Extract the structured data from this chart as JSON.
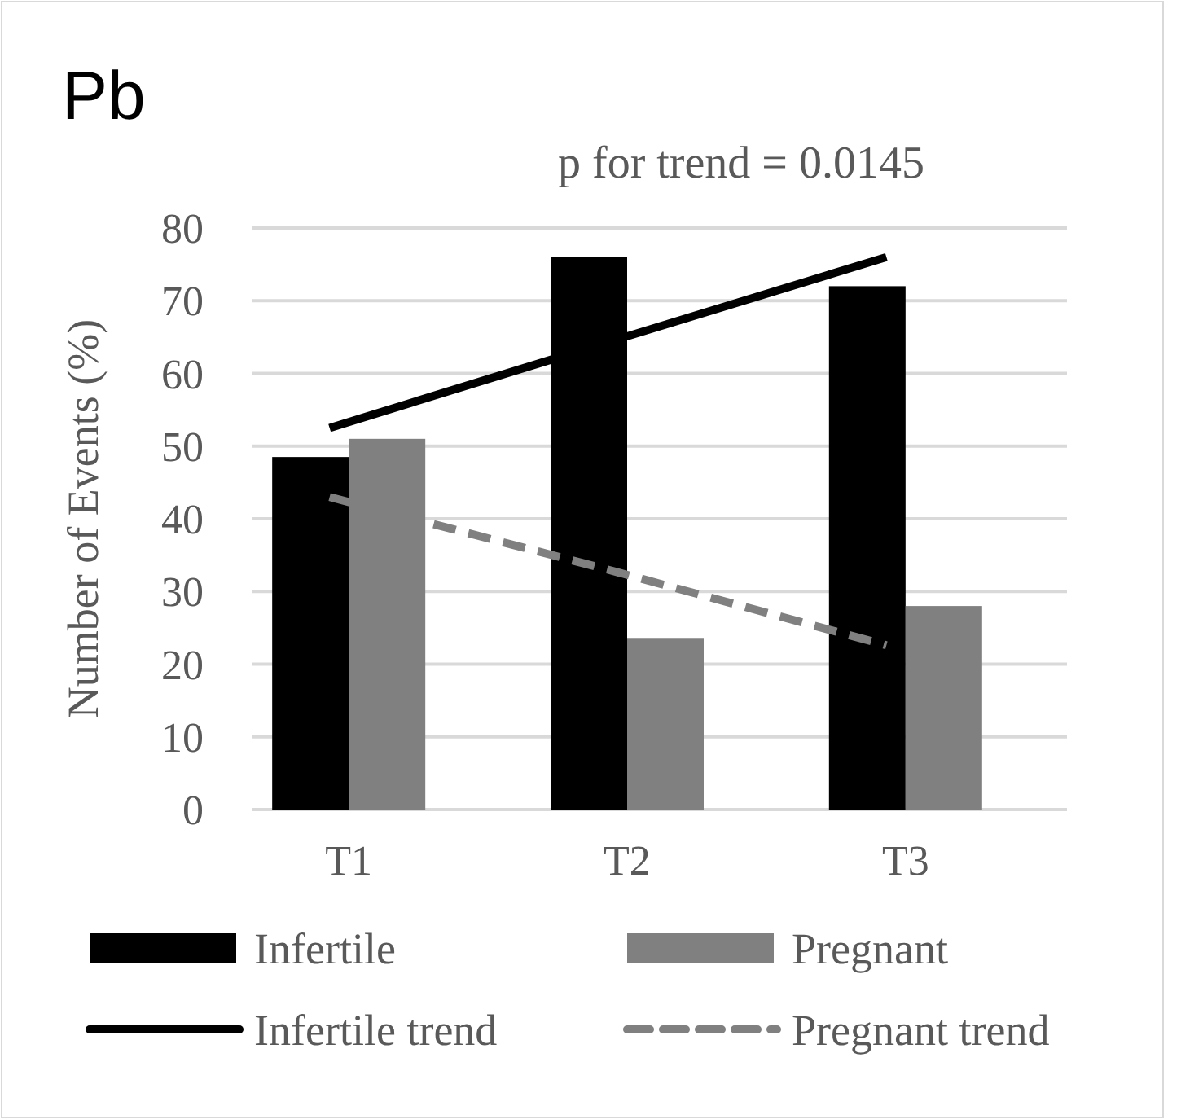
{
  "chart_data": {
    "type": "bar",
    "title": "Pb",
    "annotations": [
      "p for trend = 0.0145"
    ],
    "ylabel": "Number of Events (%)",
    "categories": [
      "T1",
      "T2",
      "T3"
    ],
    "series": [
      {
        "name": "Infertile",
        "color": "#000000",
        "values": [
          48.5,
          76,
          72
        ]
      },
      {
        "name": "Pregnant",
        "color": "#808080",
        "values": [
          51,
          23.5,
          28
        ]
      },
      {
        "name": "Infertile trend",
        "type": "line",
        "color": "#000000",
        "line_style": "solid",
        "values": [
          52.5,
          64.3,
          76
        ]
      },
      {
        "name": "Pregnant trend",
        "type": "line",
        "color": "#808080",
        "line_style": "dashed",
        "values": [
          43,
          33,
          22.6
        ]
      }
    ],
    "ylim": [
      0,
      80
    ],
    "yticks": [
      0,
      10,
      20,
      30,
      40,
      50,
      60,
      70,
      80
    ],
    "grid": "y",
    "legend": "bottom"
  }
}
